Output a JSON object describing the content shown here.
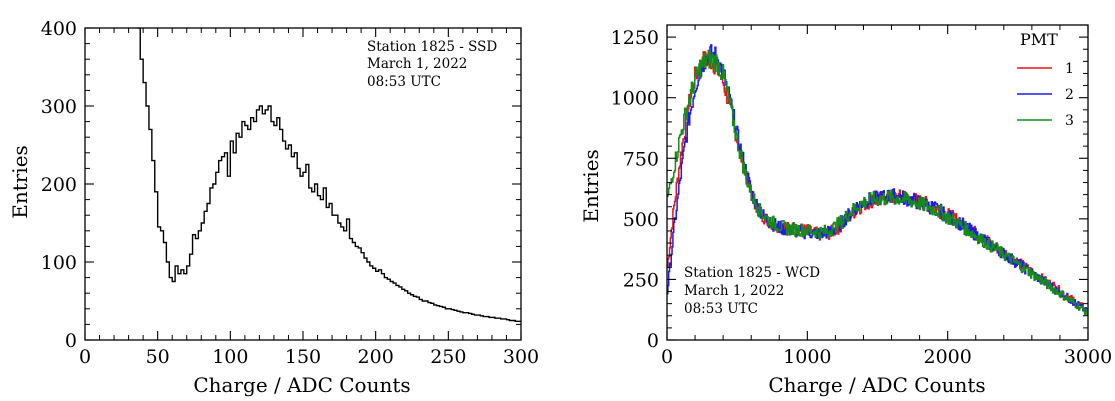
{
  "chart_data": [
    {
      "type": "histogram",
      "xlabel": "Charge / ADC Counts",
      "ylabel": "Entries",
      "xlim": [
        0,
        300
      ],
      "ylim": [
        0,
        400
      ],
      "xticks": [
        0,
        50,
        100,
        150,
        200,
        250,
        300
      ],
      "yticks": [
        0,
        100,
        200,
        300,
        400
      ],
      "grid": false,
      "annotation": [
        "Station 1825 - SSD",
        "March 1, 2022",
        "08:53 UTC"
      ],
      "bin_width": 2,
      "x": [
        36,
        38,
        40,
        42,
        44,
        46,
        48,
        50,
        52,
        54,
        56,
        58,
        60,
        62,
        64,
        66,
        68,
        70,
        72,
        74,
        76,
        78,
        80,
        82,
        84,
        86,
        88,
        90,
        92,
        94,
        96,
        98,
        100,
        102,
        104,
        106,
        108,
        110,
        112,
        114,
        116,
        118,
        120,
        122,
        124,
        126,
        128,
        130,
        132,
        134,
        136,
        138,
        140,
        142,
        144,
        146,
        148,
        150,
        152,
        154,
        156,
        158,
        160,
        162,
        164,
        166,
        168,
        170,
        172,
        174,
        176,
        178,
        180,
        182,
        184,
        186,
        188,
        190,
        192,
        194,
        196,
        198,
        200,
        202,
        204,
        206,
        208,
        210,
        212,
        214,
        216,
        218,
        220,
        222,
        224,
        226,
        228,
        230,
        232,
        234,
        236,
        238,
        240,
        242,
        244,
        246,
        248,
        250,
        252,
        254,
        256,
        258,
        260,
        262,
        264,
        266,
        268,
        270,
        272,
        274,
        276,
        278,
        280,
        282,
        284,
        286,
        288,
        290,
        292,
        294,
        296,
        298
      ],
      "values": [
        400,
        360,
        330,
        300,
        270,
        230,
        190,
        145,
        140,
        125,
        100,
        80,
        75,
        95,
        85,
        90,
        85,
        95,
        110,
        135,
        130,
        140,
        150,
        165,
        175,
        195,
        200,
        215,
        230,
        235,
        240,
        210,
        255,
        240,
        265,
        260,
        280,
        275,
        270,
        285,
        280,
        295,
        300,
        290,
        295,
        300,
        280,
        275,
        285,
        270,
        255,
        245,
        250,
        235,
        240,
        220,
        210,
        215,
        225,
        195,
        190,
        200,
        185,
        180,
        195,
        170,
        175,
        160,
        160,
        150,
        145,
        140,
        155,
        130,
        125,
        120,
        118,
        112,
        105,
        100,
        95,
        92,
        88,
        90,
        85,
        80,
        78,
        75,
        73,
        70,
        68,
        65,
        63,
        60,
        58,
        56,
        55,
        52,
        50,
        50,
        48,
        47,
        45,
        44,
        43,
        42,
        40,
        40,
        39,
        38,
        37,
        36,
        35,
        35,
        34,
        33,
        32,
        32,
        31,
        30,
        30,
        29,
        29,
        28,
        28,
        27,
        27,
        26,
        25,
        25,
        24,
        24
      ]
    },
    {
      "type": "line",
      "xlabel": "Charge / ADC Counts",
      "ylabel": "Entries",
      "xlim": [
        0,
        3000
      ],
      "ylim": [
        0,
        1300
      ],
      "xticks": [
        0,
        1000,
        2000,
        3000
      ],
      "yticks": [
        0,
        250,
        500,
        750,
        1000,
        1250
      ],
      "grid": false,
      "legend_title": "PMT",
      "legend_position": "top-right",
      "annotation": [
        "Station 1825 - WCD",
        "March 1, 2022",
        "08:53 UTC"
      ],
      "x": [
        0,
        50,
        100,
        150,
        200,
        250,
        300,
        350,
        400,
        450,
        500,
        550,
        600,
        650,
        700,
        750,
        800,
        850,
        900,
        950,
        1000,
        1050,
        1100,
        1150,
        1200,
        1250,
        1300,
        1350,
        1400,
        1450,
        1500,
        1550,
        1600,
        1650,
        1700,
        1750,
        1800,
        1850,
        1900,
        1950,
        2000,
        2050,
        2100,
        2150,
        2200,
        2250,
        2300,
        2350,
        2400,
        2450,
        2500,
        2550,
        2600,
        2650,
        2700,
        2750,
        2800,
        2850,
        2900,
        2950,
        3000
      ],
      "series": [
        {
          "name": "1",
          "color": "#e8141a",
          "values": [
            300,
            560,
            780,
            960,
            1090,
            1150,
            1160,
            1130,
            1060,
            960,
            820,
            700,
            600,
            540,
            500,
            480,
            470,
            460,
            460,
            455,
            450,
            440,
            435,
            440,
            455,
            480,
            510,
            540,
            560,
            575,
            580,
            585,
            590,
            590,
            585,
            580,
            570,
            560,
            550,
            530,
            515,
            500,
            480,
            460,
            440,
            420,
            400,
            380,
            360,
            340,
            320,
            300,
            280,
            260,
            240,
            225,
            200,
            180,
            160,
            140,
            115
          ]
        },
        {
          "name": "2",
          "color": "#1b1bf0",
          "values": [
            200,
            470,
            700,
            900,
            1050,
            1140,
            1180,
            1170,
            1100,
            980,
            840,
            720,
            610,
            540,
            500,
            480,
            465,
            455,
            450,
            445,
            445,
            440,
            440,
            445,
            460,
            490,
            520,
            550,
            570,
            580,
            585,
            590,
            595,
            590,
            585,
            575,
            565,
            555,
            545,
            530,
            510,
            495,
            475,
            455,
            435,
            415,
            395,
            375,
            355,
            335,
            315,
            295,
            275,
            255,
            235,
            215,
            195,
            175,
            155,
            135,
            110
          ]
        },
        {
          "name": "3",
          "color": "#168c16",
          "values": [
            580,
            720,
            860,
            980,
            1080,
            1140,
            1160,
            1150,
            1090,
            960,
            820,
            700,
            600,
            540,
            505,
            485,
            470,
            460,
            458,
            455,
            452,
            448,
            445,
            450,
            470,
            495,
            525,
            550,
            568,
            578,
            582,
            585,
            588,
            585,
            580,
            572,
            562,
            552,
            540,
            525,
            505,
            490,
            470,
            450,
            430,
            410,
            390,
            372,
            352,
            332,
            312,
            292,
            272,
            252,
            232,
            212,
            192,
            172,
            152,
            132,
            108
          ]
        }
      ]
    }
  ]
}
